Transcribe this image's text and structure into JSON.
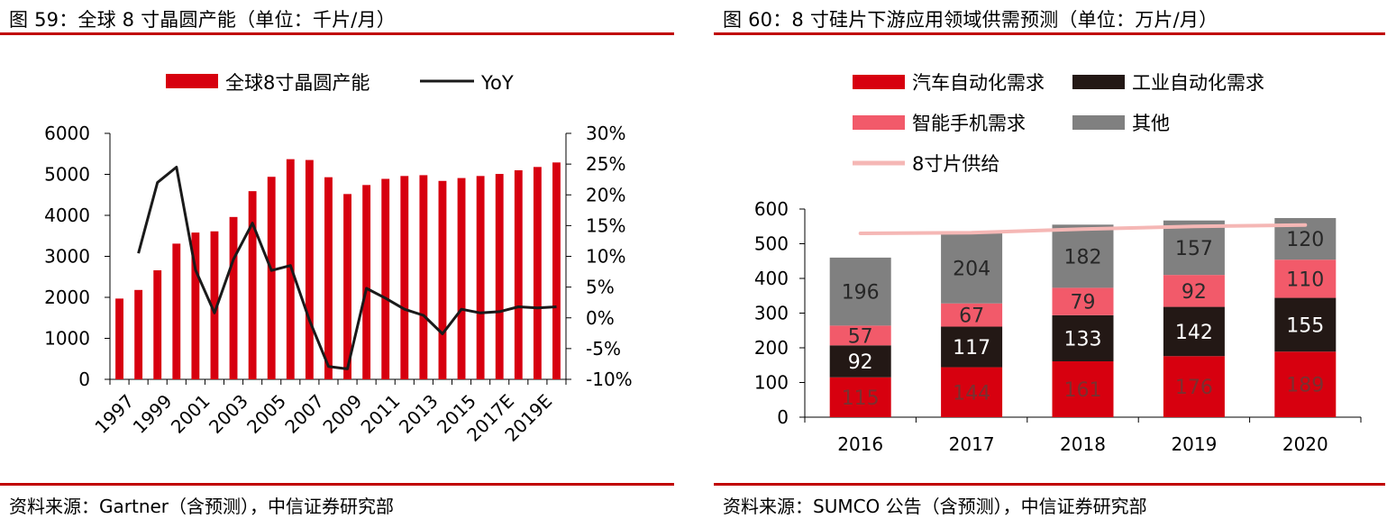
{
  "left": {
    "caption": "图 59：全球 8 寸晶圆产能（单位：千片/月）",
    "source": "资料来源：Gartner（含预测），中信证券研究部",
    "chart_data": {
      "type": "bar+line",
      "categories": [
        "1997",
        "1998",
        "1999",
        "2000",
        "2001",
        "2002",
        "2003",
        "2004",
        "2005",
        "2006",
        "2007",
        "2008",
        "2009",
        "2010",
        "2011",
        "2012",
        "2013",
        "2014",
        "2015",
        "2016",
        "2017E",
        "2018E",
        "2019E",
        "2020E"
      ],
      "tick_labels": [
        "1997",
        "1999",
        "2001",
        "2003",
        "2005",
        "2007",
        "2009",
        "2011",
        "2013",
        "2015",
        "2017E",
        "2019E"
      ],
      "series": [
        {
          "name": "全球8寸晶圆产能",
          "type": "bar",
          "axis": "left",
          "color": "#d7000f",
          "values": [
            1970,
            2180,
            2660,
            3310,
            3580,
            3610,
            3960,
            4590,
            4940,
            5370,
            5350,
            4930,
            4520,
            4740,
            4890,
            4960,
            4980,
            4840,
            4910,
            4960,
            5010,
            5100,
            5180,
            5290
          ]
        },
        {
          "name": "YoY",
          "type": "line",
          "axis": "right",
          "color": "#1a1a1a",
          "values": [
            null,
            10.5,
            22.0,
            24.5,
            7.8,
            0.8,
            9.5,
            15.4,
            7.7,
            8.5,
            -0.4,
            -7.9,
            -8.3,
            4.8,
            3.2,
            1.4,
            0.4,
            -2.6,
            1.4,
            0.8,
            1.0,
            1.8,
            1.6,
            1.8
          ]
        }
      ],
      "ylim_left": [
        0,
        6000
      ],
      "yticks_left": [
        "0",
        "1000",
        "2000",
        "3000",
        "4000",
        "5000",
        "6000"
      ],
      "ylim_right": [
        -10,
        30
      ],
      "yticks_right": [
        "-10%",
        "-5%",
        "0%",
        "5%",
        "10%",
        "15%",
        "20%",
        "25%",
        "30%"
      ],
      "legend_position": "top"
    }
  },
  "right": {
    "caption": "图 60：8 寸硅片下游应用领域供需预测（单位：万片/月）",
    "source": "资料来源：SUMCO 公告（含预测），中信证券研究部",
    "chart_data": {
      "type": "stacked-bar+line",
      "categories": [
        "2016",
        "2017",
        "2018",
        "2019",
        "2020"
      ],
      "series": [
        {
          "name": "汽车自动化需求",
          "color": "#d7000f",
          "label_color": "#7a3030",
          "values": [
            115,
            144,
            161,
            176,
            189
          ]
        },
        {
          "name": "工业自动化需求",
          "color": "#231815",
          "label_color": "#ffffff",
          "values": [
            92,
            117,
            133,
            142,
            155
          ]
        },
        {
          "name": "智能手机需求",
          "color": "#f25a6a",
          "label_color": "#2b2b2b",
          "values": [
            57,
            67,
            79,
            92,
            110
          ]
        },
        {
          "name": "其他",
          "color": "#808080",
          "label_color": "#262626",
          "values": [
            196,
            204,
            182,
            157,
            120
          ]
        }
      ],
      "line": {
        "name": "8寸片供给",
        "color": "#f5b7b5",
        "values": [
          530,
          532,
          542,
          550,
          554
        ]
      },
      "ylim": [
        0,
        600
      ],
      "yticks": [
        "0",
        "100",
        "200",
        "300",
        "400",
        "500",
        "600"
      ],
      "legend_position": "top"
    }
  }
}
